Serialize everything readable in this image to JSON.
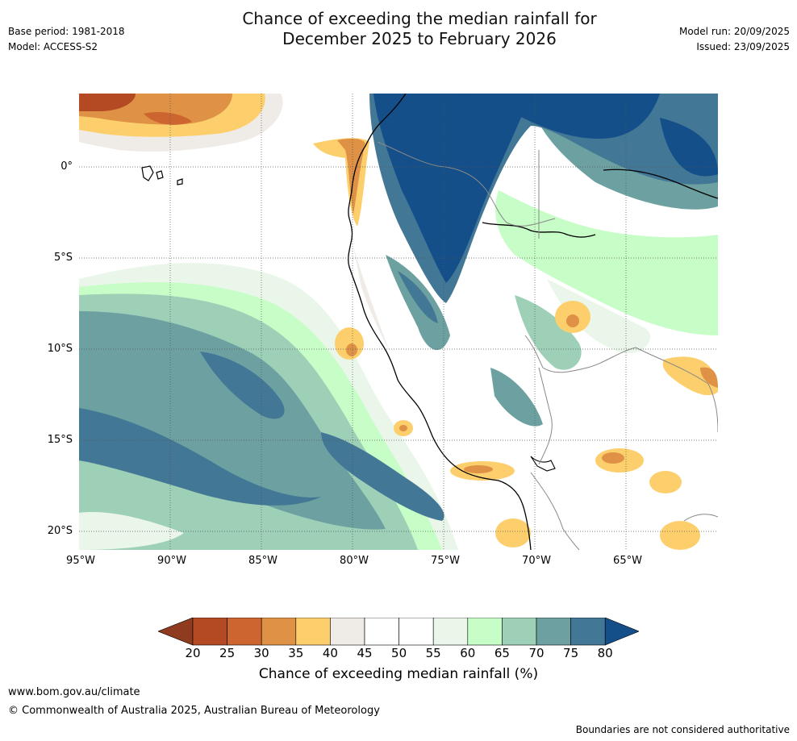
{
  "title": {
    "line1": "Chance of exceeding the median rainfall for",
    "line2": "December 2025 to February 2026"
  },
  "meta_left": {
    "base_period": "Base period: 1981-2018",
    "model": "Model: ACCESS-S2"
  },
  "meta_right": {
    "model_run": "Model run: 20/09/2025",
    "issued": "Issued: 23/09/2025"
  },
  "map": {
    "region": "Northern Chile, Peru, Ecuador, southern Colombia and western Brazil / Bolivia",
    "lat_labels": [
      "0°",
      "5°S",
      "10°S",
      "15°S",
      "20°S"
    ],
    "lon_labels": [
      "95°W",
      "90°W",
      "85°W",
      "80°W",
      "75°W",
      "70°W",
      "65°W"
    ]
  },
  "colorbar": {
    "ticks": [
      "20",
      "25",
      "30",
      "35",
      "40",
      "45",
      "50",
      "55",
      "60",
      "65",
      "70",
      "75",
      "80"
    ],
    "colors": {
      "below_20": "#8e3b1f",
      "20_25": "#b34a24",
      "25_30": "#cc6530",
      "30_35": "#df9145",
      "35_40": "#fdcf6c",
      "40_45": "#efebe7",
      "45_50": "#ffffff",
      "50_55": "#ffffff",
      "55_60": "#e9f6e9",
      "60_65": "#c7fdc7",
      "65_70": "#9ed0b7",
      "70_75": "#6da1a1",
      "75_80": "#437796",
      "above_80": "#144f8a"
    },
    "label": "Chance of exceeding median rainfall (%)"
  },
  "footer": {
    "website": "www.bom.gov.au/climate",
    "copyright": "© Commonwealth of Australia 2025, Australian Bureau of Meteorology",
    "disclaimer": "Boundaries are not considered authoritative"
  }
}
